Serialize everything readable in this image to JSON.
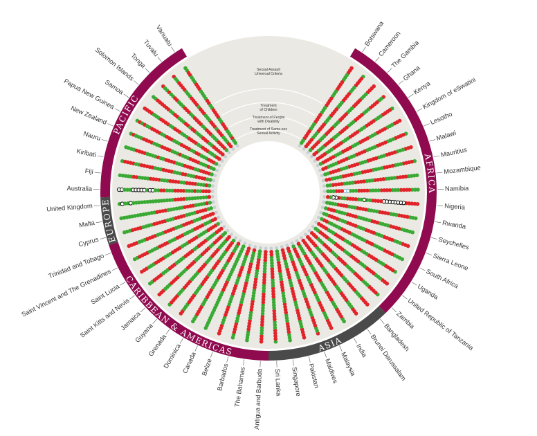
{
  "colors": {
    "green": "#3aaa35",
    "orange": "#f39c1f",
    "red": "#e0242a",
    "grey": "#c4cfd6",
    "background": "#ebe9e3",
    "commonwealth": "#8f0a4e",
    "asia_europe": "#4a4a4a"
  },
  "chart_data": {
    "type": "radial-dot-matrix",
    "categories": [
      "Sexual Assault Universal Criteria",
      "Treatment of Children",
      "Treatment of People with Disability",
      "Treatment of Same-sex Sexual Activity"
    ],
    "regions": [
      {
        "name": "AFRICA",
        "countries": [
          "Botswana",
          "Cameroon",
          "The Gambia",
          "Ghana",
          "Kenya",
          "Kingdom of eSwatini",
          "Lesotho",
          "Malawi",
          "Mauritius",
          "Mozambique",
          "Namibia",
          "Nigeria",
          "Rwanda",
          "Seychelles",
          "Sierra Leone",
          "South Africa",
          "Uganda",
          "United Republic of Tanzania",
          "Zambia"
        ]
      },
      {
        "name": "ASIA",
        "countries": [
          "Bangladesh",
          "Brunei Darussalam",
          "India",
          "Malaysia",
          "Maldives",
          "Pakistan",
          "Singapore",
          "Sri Lanka"
        ]
      },
      {
        "name": "CARIBBEAN & AMERICAS",
        "countries": [
          "Antigua and Barbuda",
          "The Bahamas",
          "Barbados",
          "Belize",
          "Canada",
          "Dominica",
          "Grenada",
          "Guyana",
          "Jamaica",
          "Saint Kitts and Nevis",
          "Saint Lucia",
          "Saint Vincent and The Grenadines",
          "Trinidad and Tobago"
        ]
      },
      {
        "name": "EUROPE",
        "countries": [
          "Cyprus",
          "Malta",
          "United Kingdom"
        ]
      },
      {
        "name": "PACIFIC",
        "countries": [
          "Australia",
          "Fiji",
          "Kiribati",
          "Nauru",
          "New Zealand",
          "Papua New Guinea",
          "Samoa",
          "Solomon Islands",
          "Tonga",
          "Tuvalu",
          "Vanuatu"
        ]
      }
    ],
    "legend": {
      "green": "green",
      "orange": "orange",
      "red": "red",
      "grey": "grey",
      "open": "open circle"
    },
    "rows": [
      {
        "country": "Vanuatu",
        "dots": "GGRRGGGRRRGGGGRRGGRRRRGGRRRGGGRGG"
      },
      {
        "country": "Tuvalu",
        "dots": "RGGRRRRGGGRRRRGRRRGGGRRRGRRRGGGRR"
      },
      {
        "country": "Tonga",
        "dots": "RGGRGGRRGGGRRRGGRRRRGGRRRGGGRRRRG"
      },
      {
        "country": "Solomon Islands",
        "dots": "GGRRRRRRGGRRGGGRRGRRGGGRRRGGRRRRR"
      },
      {
        "country": "Samoa",
        "dots": "RRRRGGGRRRRGGRRRGGGRRRRGGRRRGGGRR"
      },
      {
        "country": "Papua New Guinea",
        "dots": "GRGRGGRRRRGGRRRGGGRRRRGGRRGGGRRRG"
      },
      {
        "country": "New Zealand",
        "dots": "GRGGGRRRRGGGRRRRGGGRGGGRRRRGGGRGG"
      },
      {
        "country": "Nauru",
        "dots": "GGGGRRRRGGGGRGGRRRRGGGRRRRGGRRRRG"
      },
      {
        "country": "Kiribati",
        "dots": "GRRRRGGRRRRRGGGRRRRGGGRRGGGRRRRGG"
      },
      {
        "country": "Fiji",
        "dots": "GGGGGRRGGGGRRRRGGGRRRRGGRRRRGGGRG"
      },
      {
        "country": "Australia",
        "dots": "OOGGGOOOOOGOOGGRRGGGRRRRGGGRGGRRR"
      },
      {
        "country": "United Kingdom",
        "dots": "GOGGOGGGGGGGGGGGGGGGRRRRGGGGGGGGR"
      },
      {
        "country": "Malta",
        "dots": "GGGGGGGGGGGGGRRRRGGGGGGRRRRGGGGRG"
      },
      {
        "country": "Cyprus",
        "dots": "GGGRRRRGGGGRRRRRGGGRRRRGGGGRRRRGG"
      },
      {
        "country": "Trinidad and Tobago",
        "dots": "RRRRGGGRRRRGGGRRRRGGGRRRRGGGRRRRR"
      },
      {
        "country": "Saint Vincent and The Grenadines",
        "dots": "GGRRRRGGGGRRRRGGGRRRGGGGRRRRGGGRR"
      },
      {
        "country": "Saint Lucia",
        "dots": "RRRGGGRRRRGGGRRRRGGGRRRRGGGGRRRRG"
      },
      {
        "country": "Saint Kitts and Nevis",
        "dots": "GGRRRRGGGRRRGGGGRRRRGGRRRRGGGGRRR"
      },
      {
        "country": "Jamaica",
        "dots": "RRRGGGRRRRGGGGRRRRGGGRRRRGGRRRRGG"
      },
      {
        "country": "Guyana",
        "dots": "GRRRRGGGRRRRGGGGRRRRGGGRRRRGGGGRR"
      },
      {
        "country": "Grenada",
        "dots": "RRGGGRRRRGGGGRRRRGGGRRRRGGGGRRRRG"
      },
      {
        "country": "Dominica",
        "dots": "GGGRRRRGGGRRRRGGGGRRRRGGGRRRRGGGR"
      },
      {
        "country": "Canada",
        "dots": "GGGGGGGGGGGGGGGRRRRGGGGGGGGGGGGGG"
      },
      {
        "country": "Belize",
        "dots": "RRRRGGGRRRRGGGGRRRRGGGRRRRGGGGRRR"
      },
      {
        "country": "Barbados",
        "dots": "GGRRRRGGGRRRRGGGGRRRRGGGRRRRGGGGR"
      },
      {
        "country": "The Bahamas",
        "dots": "GGGGRRRRGGGRRRRGGGGRRRRGGGRRRRGGG"
      },
      {
        "country": "Antigua and Barbuda",
        "dots": "RRRGGGRRRRGGGGRRRRGGGRRRRGGGGRRRR"
      },
      {
        "country": "Sri Lanka",
        "dots": "GRRRRGGGRRRRGGGGRRRRGGGRRRRGGGGRR"
      },
      {
        "country": "Singapore",
        "dots": "GGGRRRRGGGRRRRGGGGRRRRGGGRRRRGGGG"
      },
      {
        "country": "Pakistan",
        "dots": "RRRRGGGRRRRGGGRRRRRGGGRRRRGGGRRRR"
      },
      {
        "country": "Maldives",
        "dots": "RGGRRRRGGGRRRRGGGRRRRGGGRRRRGGGRR"
      },
      {
        "country": "Malaysia",
        "dots": "RRRRGGGRRRRGGGRRRRGGGRRRRGGGRRRRG"
      },
      {
        "country": "India",
        "dots": "GGRRRRGGGRRRRGGGGRRRRGGGRRRRGGGGR"
      },
      {
        "country": "Brunei Darussalam",
        "dots": "RRRGGGRRRRGGGRRRRRGGGRRRRGGGRRRRR"
      },
      {
        "country": "Bangladesh",
        "dots": "RRRRGGGRRRRGGGRRRRGGGRRRRGGGRRRRR"
      },
      {
        "country": "Zambia",
        "dots": "GRRRRGGGRRRRGGGGRRRRGGGRRRRGGGRRR"
      },
      {
        "country": "United Republic of Tanzania",
        "dots": "RRRGGGRRRRGGGRRRRGGGRRRRGGGRRRRGG"
      },
      {
        "country": "Uganda",
        "dots": "GRRRRGGGRRRRGGGRRRRGGGRRRRGGGRRRR"
      },
      {
        "country": "South Africa",
        "dots": "GGGGRRRRGGGGRRRGGGGGGRRRRGGGGGRRG"
      },
      {
        "country": "Sierra Leone",
        "dots": "RRRGGGRRRRGGGRRRRGGGRRRRGGGRRRRGG"
      },
      {
        "country": "Seychelles",
        "dots": "GGGGGRRRRGGGGRRRGGGGGRRRRGGGGRRRG"
      },
      {
        "country": "Rwanda",
        "dots": "GGGRRRRGGGRRRRGGGGRRRRGGGRRRRGGGG"
      },
      {
        "country": "Nigeria",
        "dots": "RRRRROOOOOOOORRRRGGOGGRRRRGGROOGR"
      },
      {
        "country": "Namibia",
        "dots": "GGGRRRRGGGRRRRGGGGRRRRGGGBBRRRGGG"
      },
      {
        "country": "Mozambique",
        "dots": "GGGGRRRRGGGGRRRRGGGRRRRGGGGRRRRGG"
      },
      {
        "country": "Mauritius",
        "dots": "GRRRRGGGRRRRGGGGRRRRGGGRRRRGGGGRR"
      },
      {
        "country": "Malawi",
        "dots": "RRRGGGRRRRGGGRRRRGGGRRRRGGGRRRRGG"
      },
      {
        "country": "Lesotho",
        "dots": "GRRRRGGGRRRRGGGGRRRRGGGRRRRGGGGRR"
      },
      {
        "country": "Kingdom of eSwatini",
        "dots": "RRRGGGRRRRGGGRRRRGGGRRRRGGGRRRRRG"
      },
      {
        "country": "Kenya",
        "dots": "GRRRRGGGRRRRGGGRRRRGGGRRRRGGGRRRR"
      },
      {
        "country": "Ghana",
        "dots": "RGGRRRRGGGRRRRGGGRRRRGGGRRRRGGGRR"
      },
      {
        "country": "The Gambia",
        "dots": "RRRRGGGRRRRGGGRRRRGGGRRRRGGGRRRRG"
      },
      {
        "country": "Cameroon",
        "dots": "GRRRRGGGRRRRGGGRRRRGGGRRRRGGGRRRR"
      },
      {
        "country": "Botswana",
        "dots": "RRRGGGRRRRGGGRRRRGGGRRRRGGGRRRRGG"
      }
    ]
  }
}
